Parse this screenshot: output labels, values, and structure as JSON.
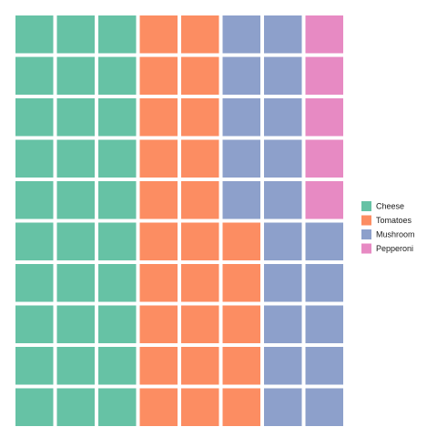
{
  "chart_data": {
    "type": "waffle",
    "title": "",
    "rows": 10,
    "columns": 8,
    "fill_order": "column-wise, left to right, filling each column from the bottom up",
    "grid": false,
    "legend_position": "right",
    "categories": [
      "Cheese",
      "Tomatoes",
      "Mushroom",
      "Pepperoni"
    ],
    "values": [
      30,
      25,
      20,
      5
    ],
    "colors": [
      "#66c2a5",
      "#fc8d62",
      "#8da0cb",
      "#e78ac3"
    ]
  }
}
